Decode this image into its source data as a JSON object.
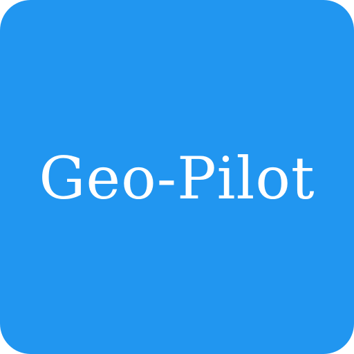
{
  "app_icon": {
    "label": "Geo-Pilot",
    "background_color": "#2196F0",
    "text_color": "#FFFFFF"
  }
}
